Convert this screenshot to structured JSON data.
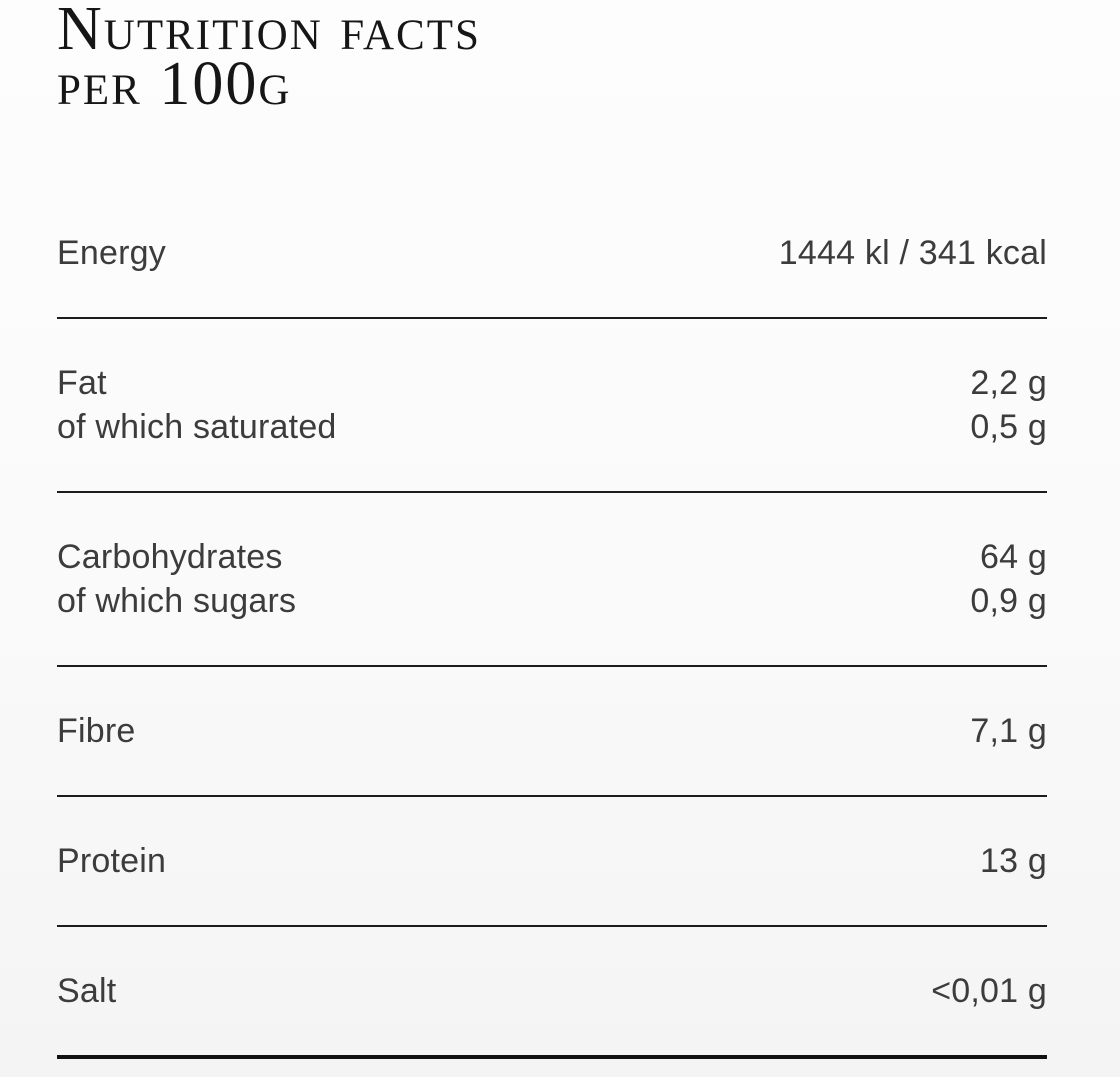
{
  "title": {
    "line1": "Nutrition facts",
    "line2": "per 100g"
  },
  "rows": [
    {
      "name": "energy",
      "lines": [
        {
          "label": "Energy",
          "value": "1444 kl / 341 kcal"
        }
      ]
    },
    {
      "name": "fat",
      "lines": [
        {
          "label": "Fat",
          "value": "2,2 g"
        },
        {
          "label": "of which saturated",
          "value": "0,5 g"
        }
      ]
    },
    {
      "name": "carbohydrates",
      "lines": [
        {
          "label": "Carbohydrates",
          "value": "64 g"
        },
        {
          "label": "of which sugars",
          "value": "0,9 g"
        }
      ]
    },
    {
      "name": "fibre",
      "lines": [
        {
          "label": "Fibre",
          "value": "7,1 g"
        }
      ]
    },
    {
      "name": "protein",
      "lines": [
        {
          "label": "Protein",
          "value": "13 g"
        }
      ]
    },
    {
      "name": "salt",
      "lines": [
        {
          "label": "Salt",
          "value": "<0,01 g"
        }
      ]
    }
  ],
  "colors": {
    "title_text": "#161616",
    "body_text": "#3c3c3c",
    "divider": "#1c1c1c",
    "bottom_divider": "#111111",
    "background": "#fbfbfb"
  }
}
